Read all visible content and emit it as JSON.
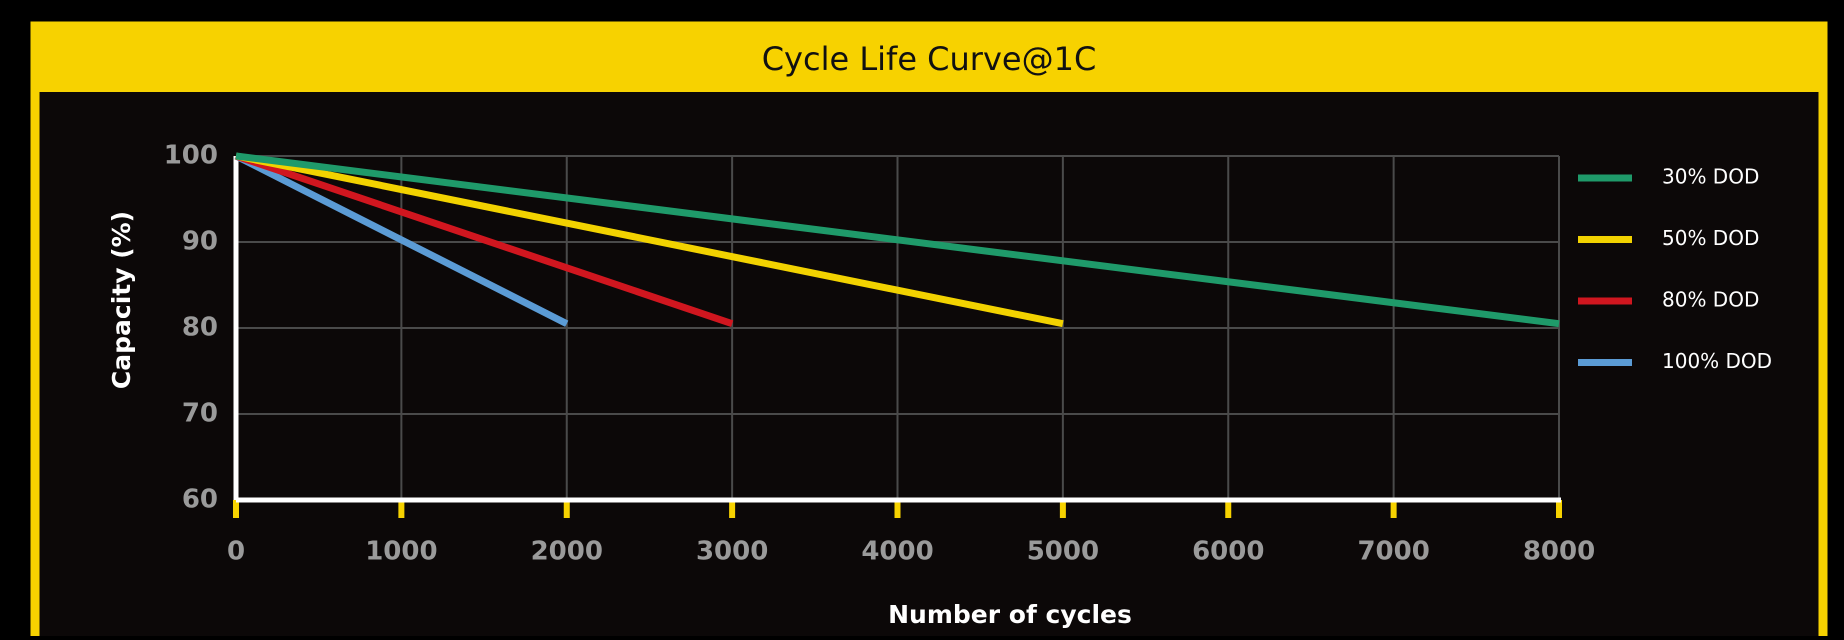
{
  "chart_data": {
    "type": "line",
    "title": "Cycle Life Curve@1C",
    "xlabel": "Number of cycles",
    "ylabel": "Capacity (%)",
    "xlim": [
      0,
      8000
    ],
    "xticks": [
      0,
      1000,
      2000,
      3000,
      4000,
      5000,
      6000,
      7000,
      8000
    ],
    "ylim": [
      60,
      100
    ],
    "yticks": [
      60,
      70,
      80,
      90,
      100
    ],
    "grid": true,
    "legend": "right",
    "series": [
      {
        "name": "30% DOD",
        "color": "#1f9a6a",
        "x": [
          0,
          8000
        ],
        "values": [
          100,
          80.5
        ]
      },
      {
        "name": "50% DOD",
        "color": "#f2d200",
        "x": [
          0,
          5000
        ],
        "values": [
          100,
          80.5
        ]
      },
      {
        "name": "80% DOD",
        "color": "#d0161f",
        "x": [
          0,
          3000
        ],
        "values": [
          100,
          80.5
        ]
      },
      {
        "name": "100% DOD",
        "color": "#5b9bd5",
        "x": [
          0,
          2000
        ],
        "values": [
          100,
          80.5
        ]
      }
    ]
  }
}
